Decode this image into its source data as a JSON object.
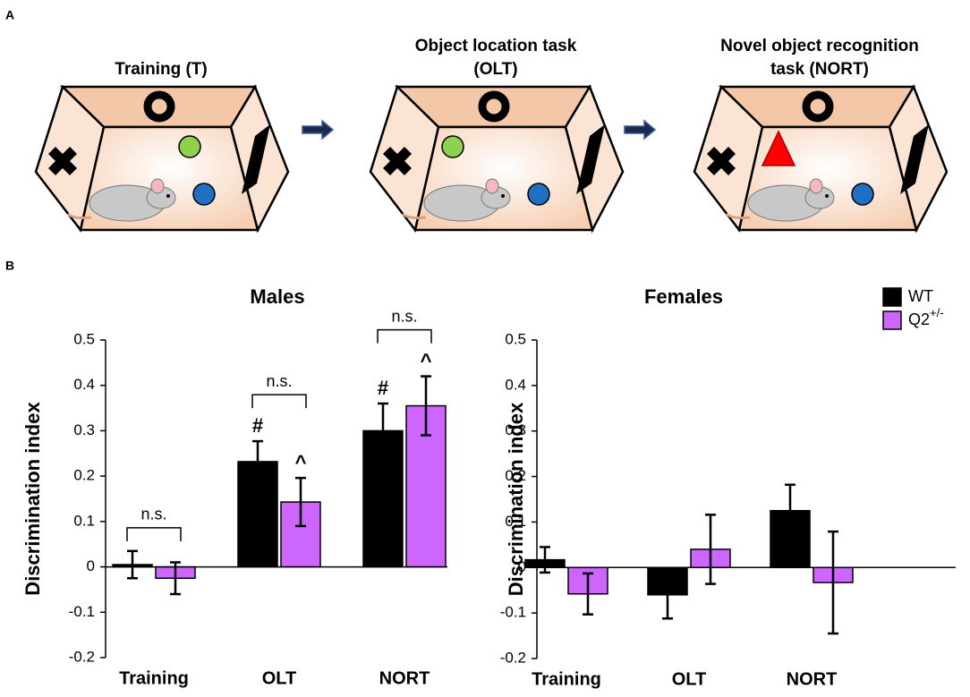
{
  "panel_labels": {
    "a": "A",
    "b": "B"
  },
  "diagram": {
    "stages": [
      {
        "label": [
          "Training (T)"
        ]
      },
      {
        "label": [
          "Object location task",
          "(OLT)"
        ]
      },
      {
        "label": [
          "Novel object recognition",
          "task (NORT)"
        ]
      }
    ]
  },
  "chart_data": [
    {
      "type": "bar",
      "title": "Males",
      "ylabel": "Discrimination index",
      "categories": [
        "Training",
        "OLT",
        "NORT"
      ],
      "series": [
        {
          "name": "WT",
          "color": "#000000",
          "values": [
            0.005,
            0.232,
            0.3
          ],
          "errors": [
            0.03,
            0.045,
            0.06
          ],
          "markers": [
            null,
            "#",
            "#"
          ]
        },
        {
          "name": "Q2+/-",
          "color": "#cc66ff",
          "values": [
            -0.025,
            0.143,
            0.355
          ],
          "errors": [
            0.035,
            0.053,
            0.065
          ],
          "markers": [
            null,
            "^",
            "^"
          ]
        }
      ],
      "brackets": [
        "n.s.",
        "n.s.",
        "n.s."
      ],
      "ylim": [
        -0.2,
        0.5
      ],
      "yticks": [
        -0.2,
        -0.1,
        0,
        0.1,
        0.2,
        0.3,
        0.4,
        0.5
      ]
    },
    {
      "type": "bar",
      "title": "Females",
      "ylabel": "Discrimination index",
      "categories": [
        "Training",
        "OLT",
        "NORT"
      ],
      "series": [
        {
          "name": "WT",
          "color": "#000000",
          "values": [
            0.017,
            -0.06,
            0.125
          ],
          "errors": [
            0.028,
            0.052,
            0.057
          ]
        },
        {
          "name": "Q2+/-",
          "color": "#cc66ff",
          "values": [
            -0.058,
            0.04,
            -0.033
          ],
          "errors": [
            0.045,
            0.076,
            0.112
          ]
        }
      ],
      "ylim": [
        -0.2,
        0.5
      ],
      "yticks": [
        -0.2,
        -0.1,
        0,
        0.1,
        0.2,
        0.3,
        0.4,
        0.5
      ],
      "legend": "upper right"
    }
  ]
}
